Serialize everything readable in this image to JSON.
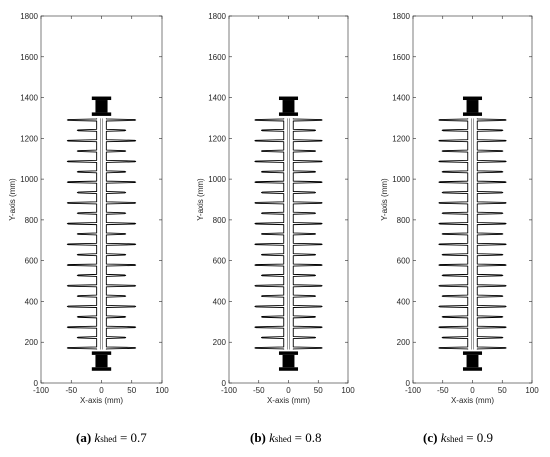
{
  "figure": {
    "panels": [
      {
        "id": "a",
        "caption": {
          "letter": "(a)",
          "k": "k",
          "sub": "shed",
          "value": "= 0.7"
        },
        "xlabel": "X-axis (mm)",
        "ylabel": "Y-axis (mm)",
        "k_shed": 0.7
      },
      {
        "id": "b",
        "caption": {
          "letter": "(b)",
          "k": "k",
          "sub": "shed",
          "value": "= 0.8"
        },
        "xlabel": "X-axis (mm)",
        "ylabel": "Y-axis (mm)",
        "k_shed": 0.8
      },
      {
        "id": "c",
        "caption": {
          "letter": "(c)",
          "k": "k",
          "sub": "shed",
          "value": "= 0.9"
        },
        "xlabel": "X-axis (mm)",
        "ylabel": "Y-axis (mm)",
        "k_shed": 0.9
      }
    ],
    "x_ticks": [
      "-100",
      "-50",
      "0",
      "50",
      "100"
    ],
    "y_ticks": [
      "0",
      "200",
      "400",
      "600",
      "800",
      "1000",
      "1200",
      "1400",
      "1600",
      "1800"
    ],
    "xlim": [
      -100,
      100
    ],
    "ylim": [
      0,
      1800
    ],
    "insulator": {
      "core_radius": 8,
      "large_shed_radius": 55,
      "shed_count": 23,
      "shed_y_start": 172,
      "shed_y_end": 1290,
      "fitting_bottom_y": [
        60,
        155
      ],
      "fitting_top_y": [
        1310,
        1405
      ]
    },
    "colors": {
      "stroke": "#000000",
      "fitting": "#000000",
      "axis": "#262626"
    }
  }
}
